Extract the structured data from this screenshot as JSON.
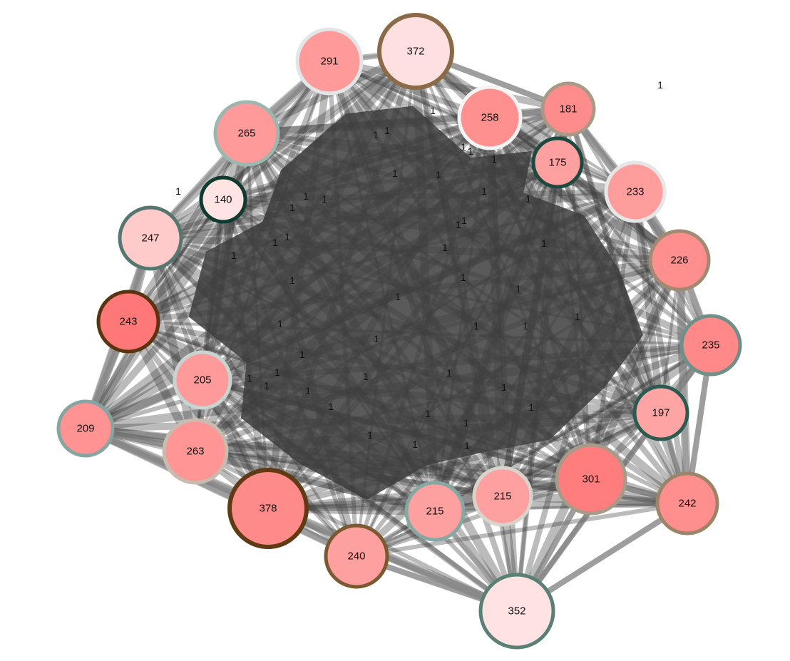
{
  "colors": {
    "edge_core": "#3d3d3d",
    "edge_outer": "#8a8a8a",
    "background": "#ffffff"
  },
  "nodes": [
    {
      "id": "n372",
      "label": "372",
      "fill": "#ffe0e0",
      "stroke": "#8a6a47"
    },
    {
      "id": "n291",
      "label": "291",
      "fill": "#ff9a9a",
      "stroke": "#e2e6e6"
    },
    {
      "id": "n258",
      "label": "258",
      "fill": "#ff9090",
      "stroke": "#f4f4f4"
    },
    {
      "id": "n181",
      "label": "181",
      "fill": "#ff8c8c",
      "stroke": "#a89a84"
    },
    {
      "id": "n265",
      "label": "265",
      "fill": "#ff9a9a",
      "stroke": "#9cb6b0"
    },
    {
      "id": "n175",
      "label": "175",
      "fill": "#ffa0a0",
      "stroke": "#1d4a40"
    },
    {
      "id": "n233",
      "label": "233",
      "fill": "#ff9d9d",
      "stroke": "#e6e6e6"
    },
    {
      "id": "n140",
      "label": "140",
      "fill": "#ffe4e4",
      "stroke": "#0f3a30"
    },
    {
      "id": "n247",
      "label": "247",
      "fill": "#ffcaca",
      "stroke": "#55776f"
    },
    {
      "id": "n226",
      "label": "226",
      "fill": "#ff8f8f",
      "stroke": "#a08a72"
    },
    {
      "id": "n243",
      "label": "243",
      "fill": "#ff7878",
      "stroke": "#5a3410"
    },
    {
      "id": "n235",
      "label": "235",
      "fill": "#ff8888",
      "stroke": "#6f8f89"
    },
    {
      "id": "n205",
      "label": "205",
      "fill": "#ff9a9a",
      "stroke": "#c6d4d2"
    },
    {
      "id": "n197",
      "label": "197",
      "fill": "#ffa4a4",
      "stroke": "#2a5a50"
    },
    {
      "id": "n209",
      "label": "209",
      "fill": "#ff9292",
      "stroke": "#86a4a0"
    },
    {
      "id": "n263",
      "label": "263",
      "fill": "#ff9595",
      "stroke": "#c8bcb0"
    },
    {
      "id": "n301",
      "label": "301",
      "fill": "#ff7d7d",
      "stroke": "#a89a88"
    },
    {
      "id": "n242",
      "label": "242",
      "fill": "#ff8e8e",
      "stroke": "#9c8468"
    },
    {
      "id": "n378",
      "label": "378",
      "fill": "#ff8a8a",
      "stroke": "#603a14"
    },
    {
      "id": "n215a",
      "label": "215",
      "fill": "#ffa0a0",
      "stroke": "#d8d4cc"
    },
    {
      "id": "n215b",
      "label": "215",
      "fill": "#ffa0a0",
      "stroke": "#86a8a2"
    },
    {
      "id": "n240",
      "label": "240",
      "fill": "#ffa0a0",
      "stroke": "#7a5a30"
    },
    {
      "id": "n352",
      "label": "352",
      "fill": "#ffe2e2",
      "stroke": "#5a8076"
    }
  ],
  "outer_edges": [
    [
      "n209",
      "n243"
    ],
    [
      "n209",
      "n247"
    ],
    [
      "n209",
      "n263"
    ],
    [
      "n209",
      "n378"
    ],
    [
      "n209",
      "n352"
    ],
    [
      "n209",
      "n240"
    ],
    [
      "n242",
      "n235"
    ],
    [
      "n242",
      "n197"
    ],
    [
      "n242",
      "n352"
    ],
    [
      "n242",
      "n301"
    ],
    [
      "n242",
      "n226"
    ],
    [
      "n235",
      "n352"
    ],
    [
      "n352",
      "n240"
    ],
    [
      "n352",
      "n215b"
    ],
    [
      "n352",
      "n301"
    ],
    [
      "n352",
      "n378"
    ],
    [
      "n372",
      "n181"
    ],
    [
      "n258",
      "n181"
    ],
    [
      "n181",
      "n233"
    ],
    [
      "n181",
      "n226"
    ],
    [
      "n233",
      "n226"
    ],
    [
      "n226",
      "n235"
    ],
    [
      "n265",
      "n291"
    ],
    [
      "n265",
      "n247"
    ],
    [
      "n247",
      "n243"
    ],
    [
      "n243",
      "n209"
    ],
    [
      "n291",
      "n372"
    ]
  ],
  "edge_labels": [
    "1",
    "1",
    "1",
    "1",
    "1",
    "1",
    "1",
    "1",
    "1",
    "1",
    "1",
    "1",
    "1",
    "1",
    "1",
    "1",
    "1",
    "1",
    "1",
    "1",
    "1",
    "1",
    "1",
    "1",
    "1",
    "1",
    "1",
    "1",
    "1",
    "1",
    "1",
    "1",
    "1",
    "1",
    "1",
    "1",
    "1",
    "1",
    "1",
    "1",
    "1",
    "1",
    "1",
    "1",
    "1",
    "1"
  ]
}
